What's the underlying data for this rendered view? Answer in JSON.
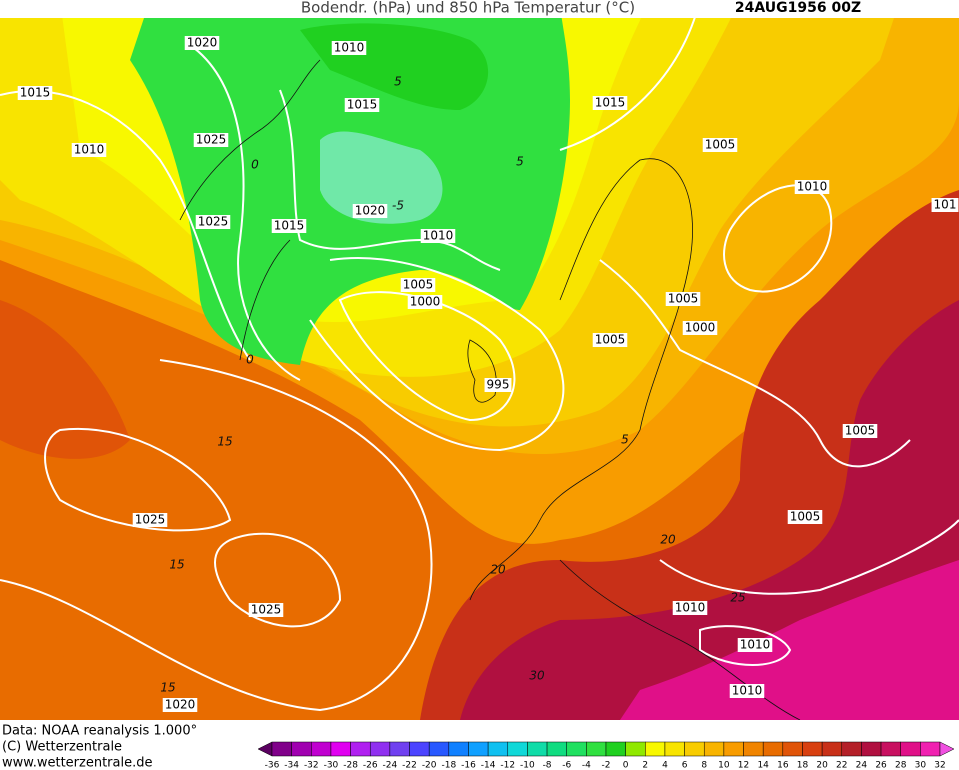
{
  "header": {
    "title": "Bodendr. (hPa) und 850 hPa Temperatur (°C)",
    "date": "24AUG1956 00Z"
  },
  "isobar_labels": [
    "1020",
    "1010",
    "1015",
    "1015",
    "1015",
    "1025",
    "1010",
    "1005",
    "1010",
    "1025",
    "1015",
    "1020",
    "1010",
    "101",
    "1005",
    "1000",
    "1005",
    "1000",
    "1005",
    "995",
    "1005",
    "1025",
    "1005",
    "1025",
    "1010",
    "1010",
    "1010",
    "1020"
  ],
  "temperature_labels": [
    "5",
    "-5",
    "5",
    "0",
    "0",
    "15",
    "15",
    "15",
    "5",
    "20",
    "20",
    "25",
    "30"
  ],
  "footer": {
    "data": "Data: NOAA reanalysis 1.000°",
    "copyright": "(C) Wetterzentrale",
    "url": "www.wetterzentrale.de"
  },
  "colorbar": {
    "ticks": [
      -36,
      -34,
      -32,
      -30,
      -28,
      -26,
      -24,
      -22,
      -20,
      -18,
      -16,
      -14,
      -12,
      -10,
      -8,
      -6,
      -4,
      -2,
      0,
      2,
      4,
      6,
      8,
      10,
      12,
      14,
      16,
      18,
      20,
      22,
      24,
      26,
      28,
      30,
      32
    ],
    "colors": [
      "#5a0060",
      "#80008a",
      "#a000b0",
      "#c000d0",
      "#e000f0",
      "#b020f0",
      "#9030f0",
      "#7040f0",
      "#4c44ff",
      "#2858ff",
      "#1080ff",
      "#10a0ff",
      "#10c0f0",
      "#10d8d8",
      "#10dca8",
      "#10dc80",
      "#20e060",
      "#30e040",
      "#20d020",
      "#90e800",
      "#f8f800",
      "#f8e400",
      "#f8cc00",
      "#f8b400",
      "#f89c00",
      "#f08400",
      "#e86c00",
      "#e05408",
      "#d84010",
      "#c83018",
      "#b42028",
      "#b01040",
      "#c81060",
      "#e01088",
      "#f020b0",
      "#f050e0"
    ]
  }
}
